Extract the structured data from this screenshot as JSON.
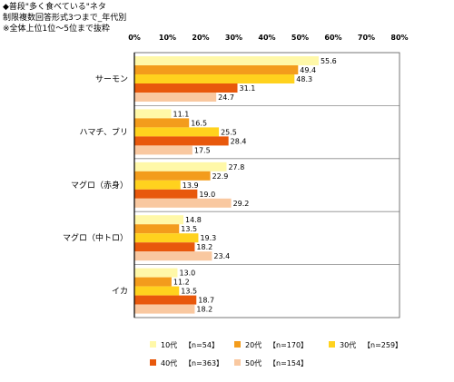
{
  "header": {
    "line1": "◆普段\"多く食べている\"ネタ",
    "line2": "制限複数回答形式3つまで_年代別",
    "line3": "※全体上位1位～5位まで抜粋"
  },
  "chart_data": {
    "type": "bar",
    "orientation": "horizontal",
    "categories": [
      "サーモン",
      "ハマチ、ブリ",
      "マグロ（赤身）",
      "マグロ（中トロ）",
      "イカ"
    ],
    "series": [
      {
        "name": "10代",
        "n": "n=54",
        "color": "#fff8a8",
        "values": [
          55.6,
          11.1,
          27.8,
          14.8,
          13.0
        ]
      },
      {
        "name": "20代",
        "n": "n=170",
        "color": "#f39c1c",
        "values": [
          49.4,
          16.5,
          22.9,
          13.5,
          11.2
        ]
      },
      {
        "name": "30代",
        "n": "n=259",
        "color": "#ffd21e",
        "values": [
          48.3,
          25.5,
          13.9,
          19.3,
          13.5
        ]
      },
      {
        "name": "40代",
        "n": "n=363",
        "color": "#e8580c",
        "values": [
          31.1,
          28.4,
          19.0,
          18.2,
          18.7
        ]
      },
      {
        "name": "50代",
        "n": "n=154",
        "color": "#f9c8a0",
        "values": [
          24.7,
          17.5,
          29.2,
          23.4,
          18.2
        ]
      }
    ],
    "xlim": [
      0,
      80
    ],
    "ticks": [
      0,
      10,
      20,
      30,
      40,
      50,
      60,
      70,
      80
    ],
    "tick_suffix": "%",
    "grid": false,
    "legend_position": "bottom"
  }
}
